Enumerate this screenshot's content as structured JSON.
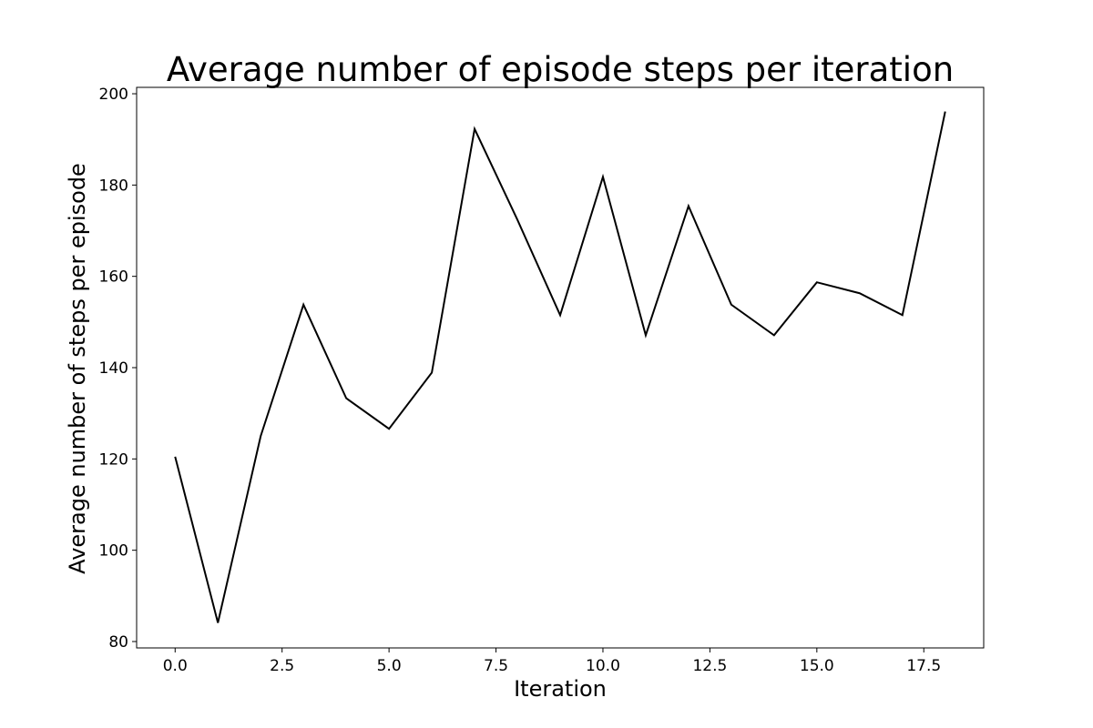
{
  "chart_data": {
    "type": "line",
    "title": "Average number of episode steps per iteration",
    "xlabel": "Iteration",
    "ylabel": "Average number of steps per episode",
    "xlim": [
      -0.9,
      18.9
    ],
    "ylim": [
      78.6,
      201.4
    ],
    "xticks": [
      0.0,
      2.5,
      5.0,
      7.5,
      10.0,
      12.5,
      15.0,
      17.5
    ],
    "xtick_labels": [
      "0.0",
      "2.5",
      "5.0",
      "7.5",
      "10.0",
      "12.5",
      "15.0",
      "17.5"
    ],
    "yticks": [
      80,
      100,
      120,
      140,
      160,
      180,
      200
    ],
    "ytick_labels": [
      "80",
      "100",
      "120",
      "140",
      "160",
      "180",
      "200"
    ],
    "grid": false,
    "series": [
      {
        "color": "#000000",
        "x": [
          0,
          1,
          2,
          3,
          4,
          5,
          6,
          7,
          8,
          9,
          10,
          11,
          12,
          13,
          14,
          15,
          16,
          17,
          18
        ],
        "y": [
          120.5,
          84.1,
          125.0,
          153.8,
          133.3,
          126.6,
          138.9,
          192.3,
          172.4,
          151.5,
          181.8,
          147.1,
          175.4,
          153.8,
          147.1,
          158.7,
          156.3,
          151.5,
          196.1
        ]
      }
    ]
  }
}
